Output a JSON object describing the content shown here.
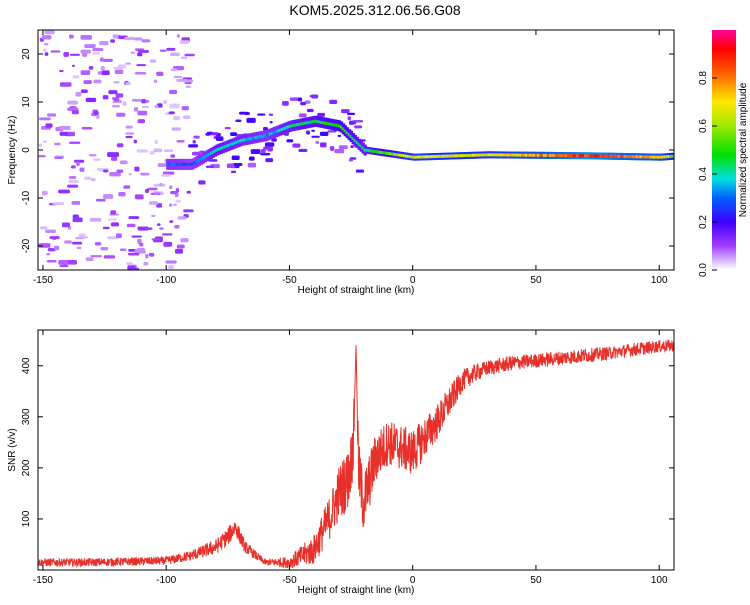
{
  "title": "KOM5.2025.312.06.56.G08",
  "chart_data": [
    {
      "type": "heatmap",
      "name": "spectrogram",
      "xlabel": "Height of straight line (km)",
      "ylabel": "Frequency (Hz)",
      "xlim": [
        -152,
        106
      ],
      "ylim": [
        -25,
        25
      ],
      "xticks": [
        -150,
        -100,
        -50,
        0,
        50,
        100
      ],
      "yticks": [
        -20,
        -10,
        0,
        10,
        20
      ],
      "colorbar": {
        "label": "Normalized spectral amplitude",
        "range": [
          0,
          1
        ],
        "ticks": [
          "0.0",
          "0.2",
          "0.4",
          "0.6",
          "0.8"
        ],
        "tick_values": [
          0,
          0.2,
          0.4,
          0.6,
          0.8
        ]
      },
      "ridge": {
        "x": [
          -100,
          -90,
          -80,
          -70,
          -60,
          -50,
          -40,
          -30,
          -20,
          0,
          30,
          70,
          100,
          105
        ],
        "freq": [
          -3,
          -3,
          0,
          2,
          3,
          5,
          6,
          5,
          0,
          -1.5,
          -1,
          -1.2,
          -1.5,
          -1.3
        ],
        "amplitude": [
          0.35,
          0.3,
          0.45,
          0.4,
          0.35,
          0.45,
          0.5,
          0.55,
          0.45,
          0.75,
          0.7,
          0.95,
          0.8,
          0.6
        ]
      }
    },
    {
      "type": "line",
      "name": "snr",
      "xlabel": "Height of straight line (km)",
      "ylabel": "SNR (v/v)",
      "xlim": [
        -152,
        106
      ],
      "ylim": [
        0,
        470
      ],
      "xticks": [
        -150,
        -100,
        -50,
        0,
        50,
        100
      ],
      "yticks": [
        100,
        200,
        300,
        400
      ],
      "color": "#e8302a",
      "series": [
        {
          "name": "SNR",
          "x": [
            -152,
            -130,
            -100,
            -90,
            -80,
            -75,
            -72,
            -68,
            -60,
            -50,
            -40,
            -33,
            -30,
            -26,
            -24,
            -23,
            -22,
            -20,
            -15,
            -10,
            -5,
            0,
            5,
            10,
            15,
            20,
            25,
            30,
            40,
            50,
            60,
            70,
            80,
            90,
            100,
            106
          ],
          "y": [
            15,
            15,
            18,
            28,
            45,
            65,
            85,
            45,
            15,
            15,
            40,
            110,
            150,
            180,
            250,
            440,
            200,
            130,
            220,
            250,
            240,
            230,
            260,
            290,
            330,
            370,
            385,
            395,
            405,
            410,
            415,
            420,
            425,
            432,
            438,
            440
          ],
          "noise": [
            8,
            8,
            8,
            10,
            15,
            18,
            18,
            12,
            6,
            12,
            30,
            45,
            55,
            60,
            60,
            30,
            60,
            60,
            50,
            45,
            45,
            45,
            40,
            35,
            30,
            22,
            18,
            15,
            15,
            14,
            14,
            14,
            13,
            13,
            12,
            12
          ]
        }
      ]
    }
  ]
}
